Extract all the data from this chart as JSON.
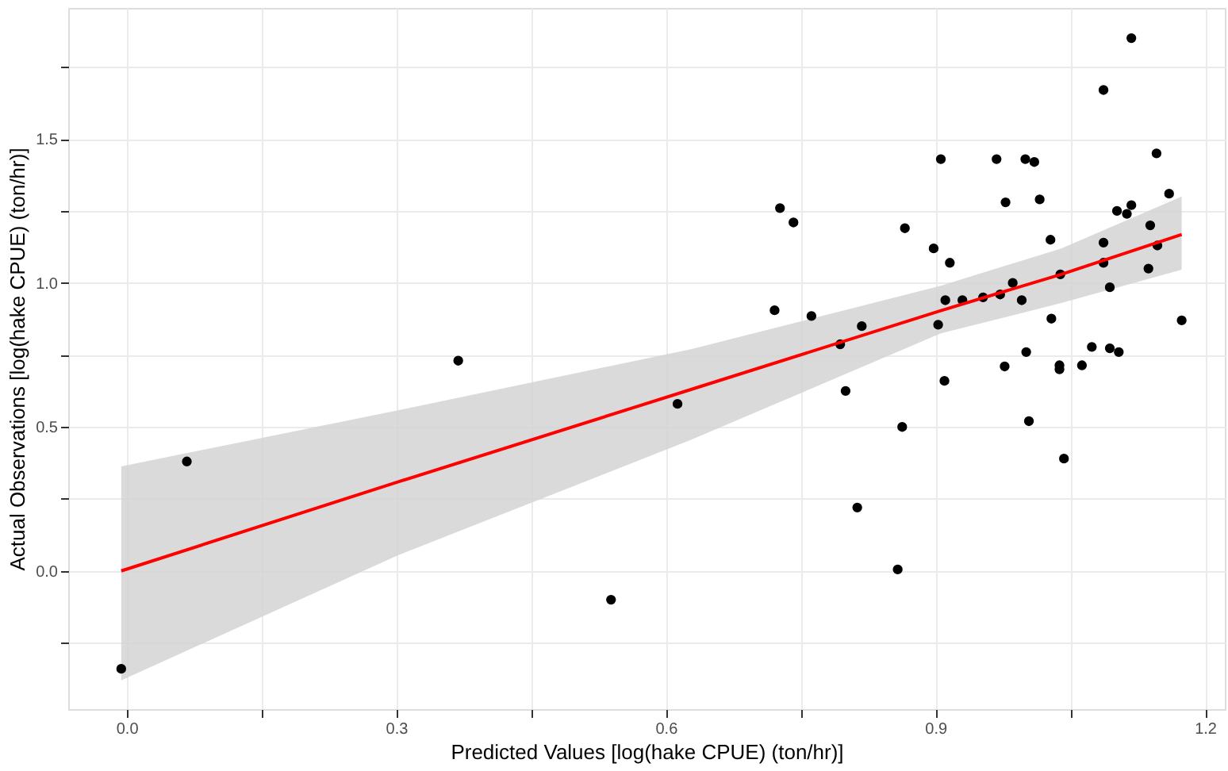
{
  "chart_data": {
    "type": "scatter",
    "xlabel": "Predicted Values [log(hake CPUE) (ton/hr)]",
    "ylabel": "Actual Observations [log(hake CPUE) (ton/hr)]",
    "xlim": [
      -0.065,
      1.222
    ],
    "ylim": [
      -0.48,
      1.955
    ],
    "xticks": [
      {
        "value": 0.0,
        "label": "0.0"
      },
      {
        "value": 0.15,
        "label": null
      },
      0.3,
      {
        "value": 0.45,
        "label": null
      },
      0.6,
      {
        "value": 0.75,
        "label": null
      },
      0.9,
      {
        "value": 1.05,
        "label": null
      },
      1.2
    ],
    "yticks": [
      {
        "value": -0.25,
        "label": null
      },
      {
        "value": 0.0,
        "label": "0.0"
      },
      {
        "value": 0.25,
        "label": null
      },
      0.5,
      {
        "value": 0.75,
        "label": null
      },
      {
        "value": 1.0,
        "label": "1.0"
      },
      {
        "value": 1.25,
        "label": null
      },
      1.5,
      {
        "value": 1.75,
        "label": null
      }
    ],
    "grid": true,
    "series": [
      {
        "color": "#000000",
        "marker": "circle",
        "x": [
          -0.006,
          0.067,
          0.369,
          0.539,
          0.613,
          1.118,
          1.087,
          0.906,
          0.968,
          1.0,
          1.01,
          1.146,
          1.16,
          0.727,
          0.742,
          0.978,
          1.016,
          1.102,
          1.113,
          1.118,
          0.866,
          1.139,
          0.898,
          0.916,
          1.028,
          1.087,
          1.147,
          1.039,
          1.087,
          1.137,
          1.094,
          0.986,
          0.996,
          0.911,
          0.93,
          0.953,
          0.972,
          0.721,
          0.762,
          0.818,
          0.903,
          1.029,
          1.174,
          0.794,
          1.001,
          1.074,
          1.094,
          1.104,
          0.8,
          0.91,
          0.977,
          1.038,
          1.038,
          1.063,
          0.863,
          1.004,
          1.043,
          0.813,
          0.858
        ],
        "values": [
          -0.34,
          0.38,
          0.73,
          -0.1,
          0.58,
          1.85,
          1.67,
          1.43,
          1.43,
          1.43,
          1.42,
          1.45,
          1.31,
          1.26,
          1.21,
          1.28,
          1.29,
          1.25,
          1.24,
          1.27,
          1.19,
          1.2,
          1.12,
          1.07,
          1.15,
          1.14,
          1.13,
          1.03,
          1.07,
          1.05,
          0.985,
          1.0,
          0.94,
          0.94,
          0.94,
          0.95,
          0.96,
          0.905,
          0.885,
          0.85,
          0.855,
          0.876,
          0.87,
          0.787,
          0.76,
          0.778,
          0.773,
          0.76,
          0.625,
          0.66,
          0.71,
          0.714,
          0.7,
          0.714,
          0.5,
          0.52,
          0.39,
          0.22,
          0.005
        ]
      },
      {
        "type": "line",
        "color": "#ff0000",
        "line_style": "solid",
        "x": [
          -0.006,
          0.301,
          0.628,
          0.906,
          1.04,
          1.174
        ],
        "values": [
          0.0,
          0.308,
          0.63,
          0.904,
          1.03,
          1.168
        ],
        "lower": [
          -0.38,
          0.053,
          0.455,
          0.825,
          0.93,
          1.046
        ],
        "upper": [
          0.363,
          0.557,
          0.77,
          0.99,
          1.12,
          1.3
        ]
      }
    ]
  }
}
